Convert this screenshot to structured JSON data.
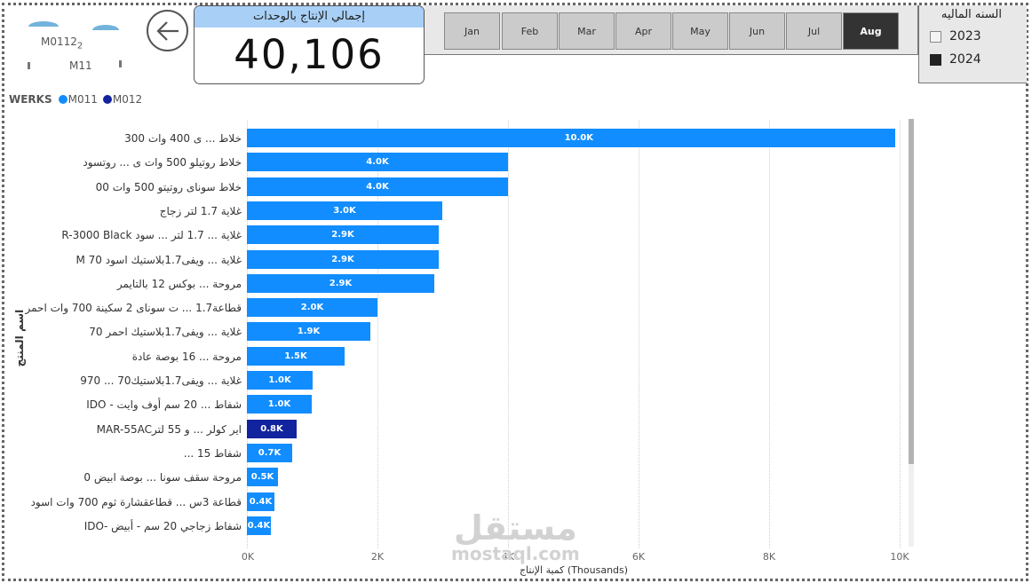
{
  "header": {
    "logo": {
      "text_top": "M0112",
      "text_sub": "2",
      "text_bottom": "M11"
    },
    "back_button": {
      "icon": "arrow-left-icon"
    },
    "kpi": {
      "title": "إجمالي الإنتاج بالوحدات",
      "value": "40,106"
    }
  },
  "month_slicer": {
    "months": [
      {
        "label": "Jan",
        "active": false
      },
      {
        "label": "Feb",
        "active": false
      },
      {
        "label": "Mar",
        "active": false
      },
      {
        "label": "Apr",
        "active": false
      },
      {
        "label": "May",
        "active": false
      },
      {
        "label": "Jun",
        "active": false
      },
      {
        "label": "Jul",
        "active": false
      },
      {
        "label": "Aug",
        "active": true
      }
    ]
  },
  "year_slicer": {
    "title": "السنه الماليه",
    "items": [
      {
        "label": "2023",
        "checked": false
      },
      {
        "label": "2024",
        "checked": true
      }
    ]
  },
  "legend": {
    "title": "WERKS",
    "items": [
      {
        "label": "M011",
        "color": "#118dff"
      },
      {
        "label": "M012",
        "color": "#12239e"
      }
    ]
  },
  "colors": {
    "M011": "#118dff",
    "M012": "#12239e"
  },
  "chart_data": {
    "type": "bar",
    "orientation": "horizontal",
    "title": "",
    "xlabel": "كمية الإنتاج (Thousands)",
    "ylabel": "اسم المنتج",
    "xlim": [
      0,
      10000
    ],
    "x_ticks": [
      "0K",
      "2K",
      "4K",
      "6K",
      "8K",
      "10K"
    ],
    "grid": true,
    "legend_position": "top-left",
    "categories": [
      "خلاط ... ى 400 وات 300",
      "خلاط روتيلو 500 وات ى ... روتسود",
      "خلاط سوناى روتيتو 500 وات 00",
      "غلاية 1.7 لتر زجاج",
      "غلاية ... 1.7 لتر ... سود R-3000 Black",
      "غلاية ... ويفى1.7بلاستيك اسود 70 M",
      "مروحة ... بوكس 12 بالتايمر",
      "قطاعة1.7 ... ت سوناى 2 سكينة 700 وات احمر",
      "غلاية ... ويفى1.7بلاستيك احمر 70",
      "مروحة ... 16 بوصة عادة",
      "غلاية ... ويفى1.7بلاستيك70 ... 970",
      "شفاط ... 20 سم أوف وايت - IDO",
      "اير كولر ... و 55 لترMAR-55AC",
      "شفاط 15 ...",
      "مروحة سقف سونا ... بوصة ابيض 0",
      "قطاعة 3س ... قطاعقشارة ثوم 700 وات اسود",
      "شفاط زجاجي 20 سم - أبيض -IDO"
    ],
    "series": [
      {
        "name": "M011",
        "color": "#118dff",
        "values": [
          10000,
          4000,
          4000,
          3000,
          2900,
          2900,
          2900,
          2000,
          1900,
          1500,
          1000,
          1000,
          0,
          700,
          500,
          400,
          400
        ]
      },
      {
        "name": "M012",
        "color": "#12239e",
        "values": [
          0,
          0,
          0,
          0,
          0,
          0,
          0,
          0,
          0,
          0,
          0,
          0,
          800,
          0,
          0,
          0,
          0
        ]
      }
    ],
    "bars": [
      {
        "label": "10.0K",
        "value": 9950,
        "series": "M011"
      },
      {
        "label": "4.0K",
        "value": 4000,
        "series": "M011"
      },
      {
        "label": "4.0K",
        "value": 4000,
        "series": "M011"
      },
      {
        "label": "3.0K",
        "value": 3000,
        "series": "M011"
      },
      {
        "label": "2.9K",
        "value": 2940,
        "series": "M011"
      },
      {
        "label": "2.9K",
        "value": 2940,
        "series": "M011"
      },
      {
        "label": "2.9K",
        "value": 2880,
        "series": "M011"
      },
      {
        "label": "2.0K",
        "value": 2000,
        "series": "M011"
      },
      {
        "label": "1.9K",
        "value": 1900,
        "series": "M011"
      },
      {
        "label": "1.5K",
        "value": 1500,
        "series": "M011"
      },
      {
        "label": "1.0K",
        "value": 1010,
        "series": "M011"
      },
      {
        "label": "1.0K",
        "value": 1000,
        "series": "M011"
      },
      {
        "label": "0.8K",
        "value": 760,
        "series": "M012"
      },
      {
        "label": "0.7K",
        "value": 690,
        "series": "M011"
      },
      {
        "label": "0.5K",
        "value": 480,
        "series": "M011"
      },
      {
        "label": "0.4K",
        "value": 420,
        "series": "M011"
      },
      {
        "label": "0.4K",
        "value": 370,
        "series": "M011"
      }
    ]
  },
  "watermark": {
    "arabic": "مستقل",
    "latin": "mostaql.com"
  }
}
